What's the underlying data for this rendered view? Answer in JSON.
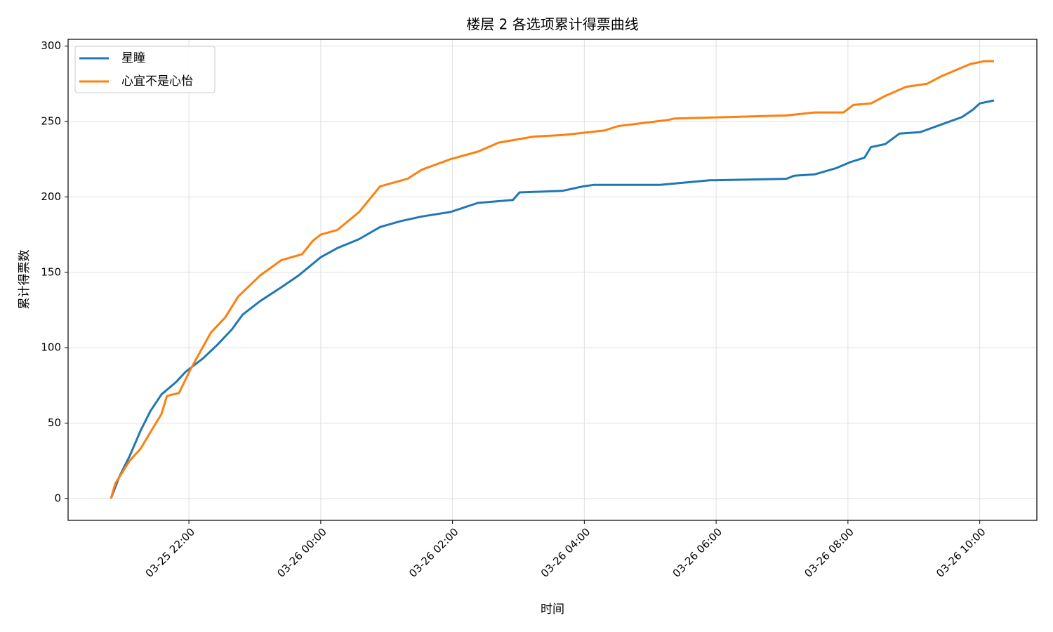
{
  "chart_data": {
    "type": "line",
    "title": "楼层 2 各选项累计得票曲线",
    "xlabel": "时间",
    "ylabel": "累计得票数",
    "xlim": [
      "03-25 20:10",
      "03-26 10:52"
    ],
    "xticks": [
      "03-25 22:00",
      "03-26 00:00",
      "03-26 02:00",
      "03-26 04:00",
      "03-26 06:00",
      "03-26 08:00",
      "03-26 10:00"
    ],
    "ylim": [
      -14.5,
      304.5
    ],
    "yticks": [
      0,
      50,
      100,
      150,
      200,
      250,
      300
    ],
    "grid": true,
    "legend": "upper left",
    "series": [
      {
        "name": "星瞳",
        "color": "#1f77b4",
        "x": [
          "03-25 20:49",
          "03-25 20:57",
          "03-25 21:06",
          "03-25 21:16",
          "03-25 21:25",
          "03-25 21:35",
          "03-25 21:48",
          "03-25 21:57",
          "03-25 22:13",
          "03-25 22:26",
          "03-25 22:39",
          "03-25 22:49",
          "03-25 23:05",
          "03-25 23:24",
          "03-25 23:40",
          "03-26 00:00",
          "03-26 00:15",
          "03-26 00:35",
          "03-26 00:54",
          "03-26 01:13",
          "03-26 01:32",
          "03-26 01:58",
          "03-26 02:23",
          "03-26 02:55",
          "03-26 03:01",
          "03-26 03:40",
          "03-26 03:59",
          "03-26 04:09",
          "03-26 05:09",
          "03-26 05:54",
          "03-26 07:04",
          "03-26 07:11",
          "03-26 07:30",
          "03-26 07:49",
          "03-26 08:02",
          "03-26 08:15",
          "03-26 08:21",
          "03-26 08:34",
          "03-26 08:47",
          "03-26 09:06",
          "03-26 09:25",
          "03-26 09:44",
          "03-26 09:54",
          "03-26 10:00",
          "03-26 10:13"
        ],
        "values": [
          0,
          15,
          28,
          45,
          58,
          69,
          77,
          84,
          93,
          102,
          112,
          122,
          131,
          140,
          148,
          160,
          166,
          172,
          180,
          184,
          187,
          190,
          196,
          198,
          203,
          204,
          207,
          208,
          208,
          211,
          212,
          214,
          215,
          219,
          223,
          226,
          233,
          235,
          242,
          243,
          248,
          253,
          258,
          262,
          264
        ]
      },
      {
        "name": "心宜不是心怡",
        "color": "#ff7f0e",
        "x": [
          "03-25 20:49",
          "03-25 20:53",
          "03-25 21:06",
          "03-25 21:16",
          "03-25 21:25",
          "03-25 21:35",
          "03-25 21:40",
          "03-25 21:51",
          "03-25 22:01",
          "03-25 22:10",
          "03-25 22:20",
          "03-25 22:33",
          "03-25 22:45",
          "03-25 23:05",
          "03-25 23:24",
          "03-25 23:43",
          "03-25 23:53",
          "03-26 00:00",
          "03-26 00:15",
          "03-26 00:35",
          "03-26 00:54",
          "03-26 01:19",
          "03-26 01:32",
          "03-26 01:58",
          "03-26 02:23",
          "03-26 02:42",
          "03-26 03:14",
          "03-26 03:40",
          "03-26 04:18",
          "03-26 04:31",
          "03-26 05:16",
          "03-26 05:22",
          "03-26 06:13",
          "03-26 07:04",
          "03-26 07:30",
          "03-26 07:56",
          "03-26 08:05",
          "03-26 08:21",
          "03-26 08:34",
          "03-26 08:53",
          "03-26 09:12",
          "03-26 09:25",
          "03-26 09:38",
          "03-26 09:51",
          "03-26 10:04",
          "03-26 10:13"
        ],
        "values": [
          0,
          10,
          25,
          33,
          44,
          56,
          68,
          70,
          85,
          97,
          110,
          120,
          134,
          148,
          158,
          162,
          171,
          175,
          178,
          190,
          207,
          212,
          218,
          225,
          230,
          236,
          240,
          241,
          244,
          247,
          251,
          252,
          253,
          254,
          256,
          256,
          261,
          262,
          267,
          273,
          275,
          280,
          284,
          288,
          290,
          290
        ]
      }
    ]
  }
}
